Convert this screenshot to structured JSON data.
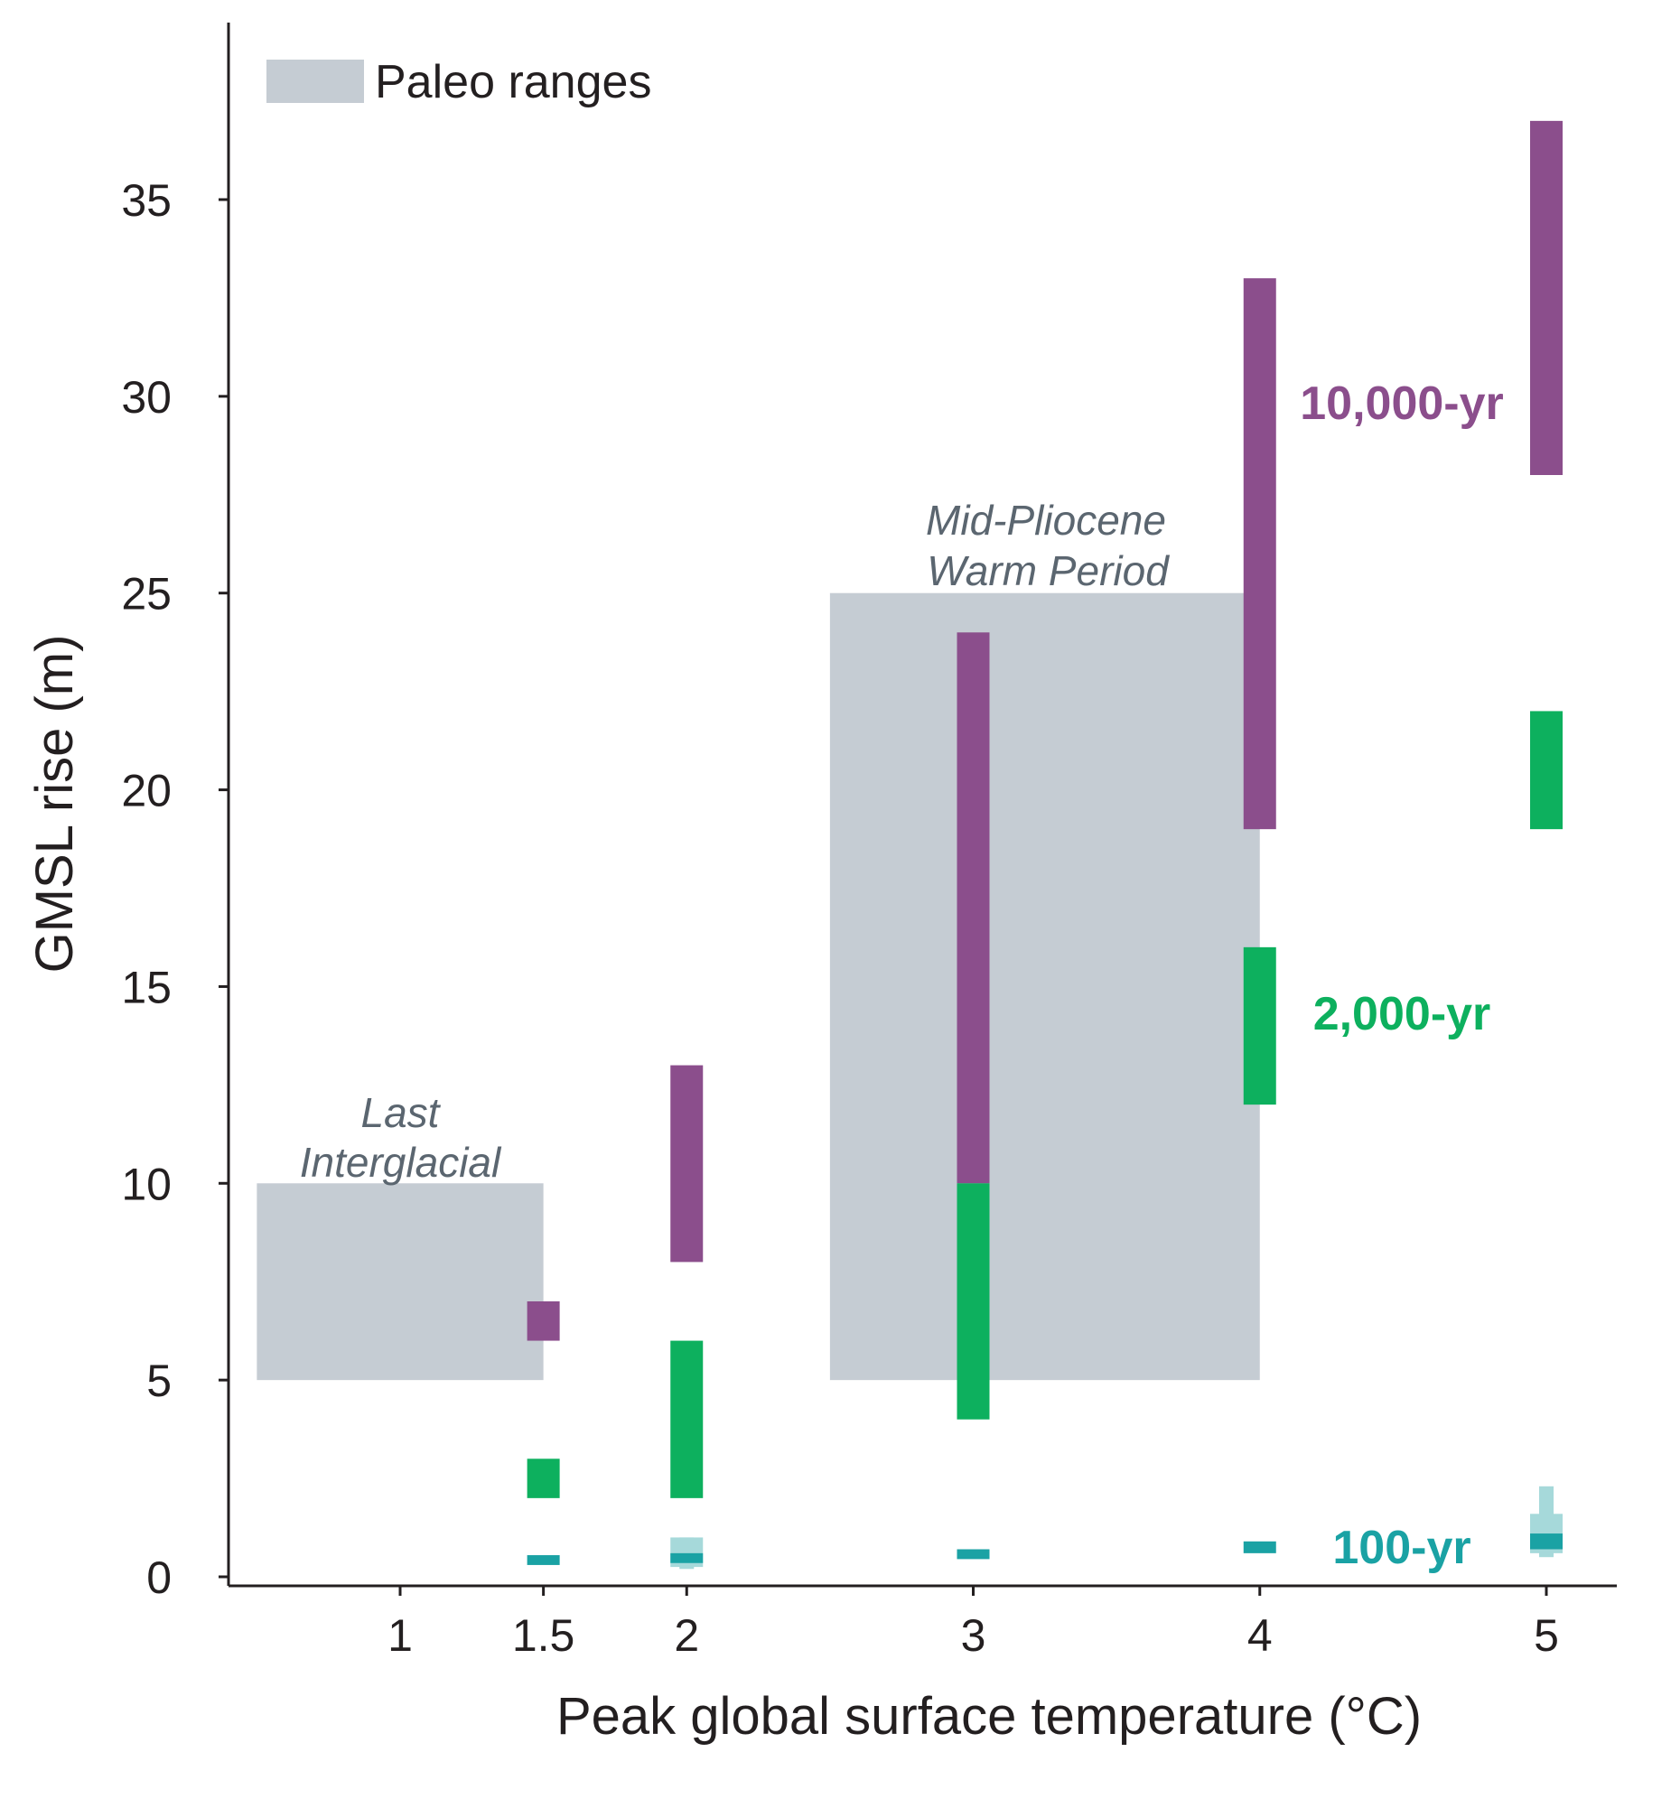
{
  "chart_data": {
    "type": "bar",
    "xlabel": "Peak global surface temperature (°C)",
    "ylabel": "GMSL rise (m)",
    "xlim": [
      0.5,
      5.25
    ],
    "ylim": [
      -0.3,
      39
    ],
    "xticks": [
      {
        "value": 1,
        "label": "1"
      },
      {
        "value": 1.5,
        "label": "1.5"
      },
      {
        "value": 2,
        "label": "2"
      },
      {
        "value": 3,
        "label": "3"
      },
      {
        "value": 4,
        "label": "4"
      },
      {
        "value": 5,
        "label": "5"
      }
    ],
    "yticks": [
      {
        "value": 0,
        "label": "0"
      },
      {
        "value": 5,
        "label": "5"
      },
      {
        "value": 10,
        "label": "10"
      },
      {
        "value": 15,
        "label": "15"
      },
      {
        "value": 20,
        "label": "20"
      },
      {
        "value": 25,
        "label": "25"
      },
      {
        "value": 30,
        "label": "30"
      },
      {
        "value": 35,
        "label": "35"
      }
    ],
    "legend": {
      "label": "Paleo ranges",
      "placement": "top-left",
      "color": "#c5ccd3"
    },
    "paleo_ranges": [
      {
        "label_lines": [
          "Last",
          "Interglacial"
        ],
        "x_range": [
          0.5,
          1.5
        ],
        "y_range": [
          5,
          10
        ]
      },
      {
        "label_lines": [
          "Mid-Pliocene",
          "Warm Period"
        ],
        "x_range": [
          2.5,
          4.0
        ],
        "y_range": [
          5,
          25
        ]
      }
    ],
    "series": [
      {
        "name": "10,000-yr",
        "color": "#8b4e8c",
        "ranges": [
          {
            "x": 1.5,
            "low": 6,
            "high": 7
          },
          {
            "x": 2,
            "low": 8,
            "high": 13
          },
          {
            "x": 3,
            "low": 10,
            "high": 24
          },
          {
            "x": 4,
            "low": 19,
            "high": 33
          },
          {
            "x": 5,
            "low": 28,
            "high": 37
          }
        ]
      },
      {
        "name": "2,000-yr",
        "color": "#0db05e",
        "ranges": [
          {
            "x": 1.5,
            "low": 2,
            "high": 3
          },
          {
            "x": 2,
            "low": 2,
            "high": 6
          },
          {
            "x": 3,
            "low": 4,
            "high": 10
          },
          {
            "x": 4,
            "low": 12,
            "high": 16
          },
          {
            "x": 5,
            "low": 19,
            "high": 22
          }
        ]
      },
      {
        "name": "100-yr",
        "color": "#1aa2a4",
        "light_color": "#a6d9da",
        "ranges": [
          {
            "x": 1.5,
            "low": 0.3,
            "high": 0.55
          },
          {
            "x": 2,
            "low": 0.35,
            "high": 0.6,
            "light_low": 0.2,
            "light_high": 1.0
          },
          {
            "x": 3,
            "low": 0.45,
            "high": 0.7
          },
          {
            "x": 4,
            "low": 0.6,
            "high": 0.9
          },
          {
            "x": 5,
            "low": 0.7,
            "high": 1.1,
            "light_low": 0.5,
            "light_high": 2.3
          }
        ]
      }
    ]
  }
}
